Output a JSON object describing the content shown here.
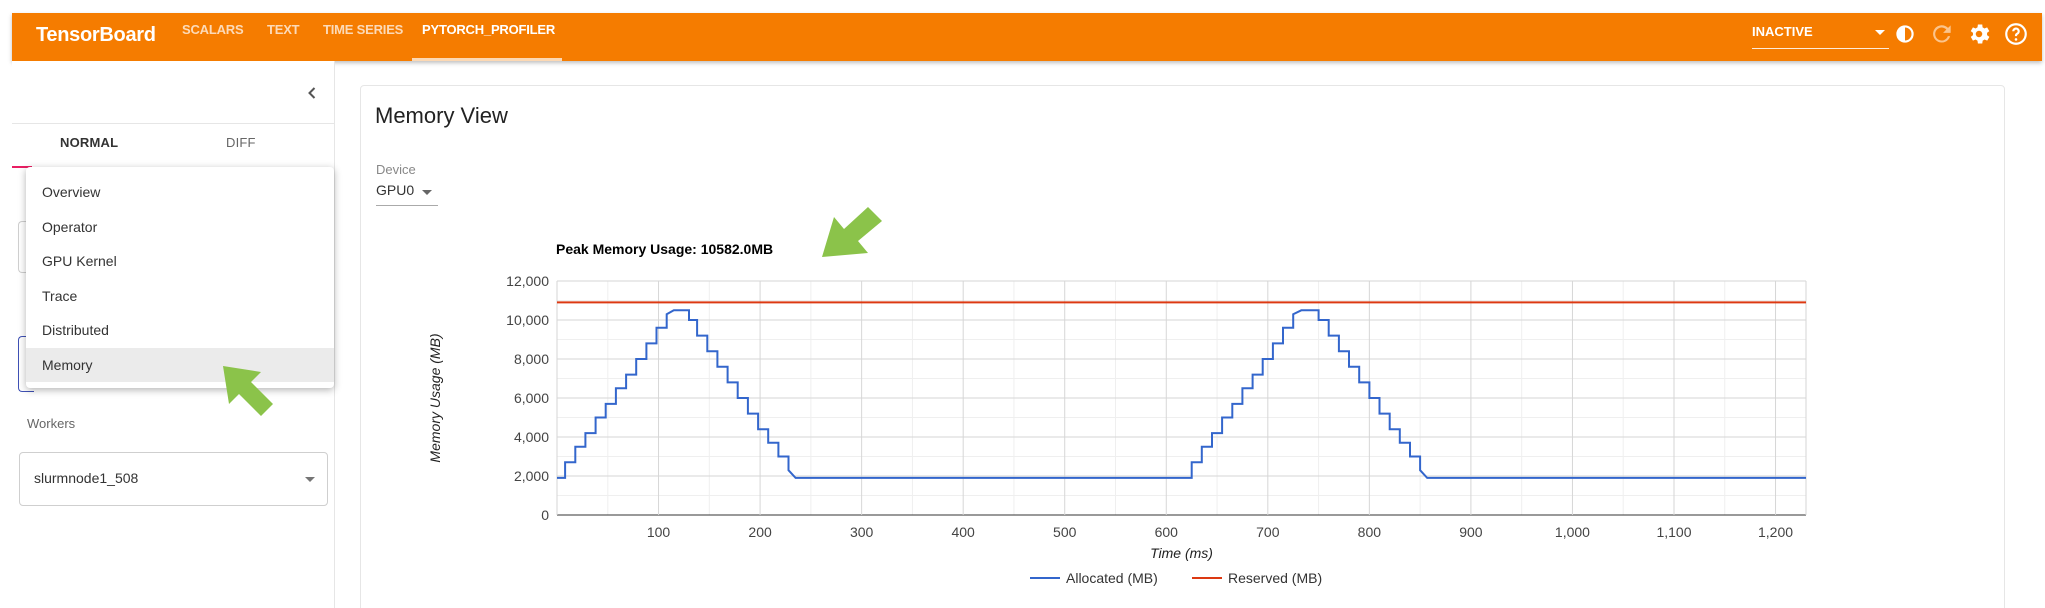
{
  "header": {
    "brand": "TensorBoard",
    "tabs": [
      {
        "label": "SCALARS"
      },
      {
        "label": "TEXT"
      },
      {
        "label": "TIME SERIES"
      },
      {
        "label": "PYTORCH_PROFILER"
      }
    ],
    "active_tab": "PYTORCH_PROFILER",
    "status": "INACTIVE",
    "icons": [
      "theme-icon",
      "refresh-icon",
      "settings-icon",
      "help-icon"
    ],
    "color": "#f57c00"
  },
  "sidebar": {
    "tabs": [
      {
        "label": "NORMAL"
      },
      {
        "label": "DIFF"
      }
    ],
    "views_menu": {
      "items": [
        {
          "label": "Overview"
        },
        {
          "label": "Operator"
        },
        {
          "label": "GPU Kernel"
        },
        {
          "label": "Trace"
        },
        {
          "label": "Distributed"
        },
        {
          "label": "Memory"
        }
      ],
      "selected": "Memory"
    },
    "workers_label": "Workers",
    "worker_value": "slurmnode1_508"
  },
  "main": {
    "title": "Memory View",
    "device_label": "Device",
    "device_value": "GPU0"
  },
  "chart_data": {
    "type": "line",
    "title": "Peak Memory Usage: 10582.0MB",
    "xlabel": "Time (ms)",
    "ylabel": "Memory Usage (MB)",
    "xlim": [
      0,
      1230
    ],
    "ylim": [
      0,
      12000
    ],
    "x_ticks": [
      100,
      200,
      300,
      400,
      500,
      600,
      700,
      800,
      900,
      1000,
      1100,
      1200
    ],
    "x_tick_labels": [
      "100",
      "200",
      "300",
      "400",
      "500",
      "600",
      "700",
      "800",
      "900",
      "1,000",
      "1,100",
      "1,200"
    ],
    "y_ticks": [
      0,
      2000,
      4000,
      6000,
      8000,
      10000,
      12000
    ],
    "y_tick_labels": [
      "0",
      "2,000",
      "4,000",
      "6,000",
      "8,000",
      "10,000",
      "12,000"
    ],
    "grid": true,
    "legend_position": "bottom",
    "series": [
      {
        "name": "Allocated (MB)",
        "color": "#3366cc",
        "x": [
          0,
          8,
          8,
          18,
          18,
          28,
          28,
          38,
          38,
          48,
          48,
          58,
          58,
          68,
          68,
          78,
          78,
          88,
          88,
          98,
          98,
          108,
          108,
          115,
          130,
          130,
          138,
          138,
          148,
          148,
          158,
          158,
          168,
          168,
          178,
          178,
          188,
          188,
          198,
          198,
          208,
          208,
          218,
          218,
          228,
          228,
          235,
          625,
          625,
          635,
          635,
          645,
          645,
          655,
          655,
          665,
          665,
          675,
          675,
          685,
          685,
          695,
          695,
          705,
          705,
          715,
          715,
          725,
          725,
          733,
          750,
          750,
          760,
          760,
          770,
          770,
          780,
          780,
          790,
          790,
          800,
          800,
          810,
          810,
          820,
          820,
          830,
          830,
          840,
          840,
          850,
          850,
          857,
          1230
        ],
        "y": [
          1900,
          1900,
          2700,
          2700,
          3500,
          3500,
          4200,
          4200,
          5000,
          5000,
          5700,
          5700,
          6500,
          6500,
          7200,
          7200,
          8000,
          8000,
          8800,
          8800,
          9600,
          9600,
          10300,
          10500,
          10500,
          10000,
          10000,
          9200,
          9200,
          8400,
          8400,
          7600,
          7600,
          6800,
          6800,
          6000,
          6000,
          5200,
          5200,
          4400,
          4400,
          3700,
          3700,
          3000,
          3000,
          2300,
          1900,
          1900,
          2700,
          2700,
          3500,
          3500,
          4200,
          4200,
          5000,
          5000,
          5700,
          5700,
          6500,
          6500,
          7200,
          7200,
          8000,
          8000,
          8800,
          8800,
          9600,
          9600,
          10300,
          10500,
          10500,
          10000,
          10000,
          9200,
          9200,
          8400,
          8400,
          7600,
          7600,
          6800,
          6800,
          6000,
          6000,
          5200,
          5200,
          4400,
          4400,
          3700,
          3700,
          3000,
          3000,
          2300,
          1900,
          1900
        ]
      },
      {
        "name": "Reserved (MB)",
        "color": "#dc3912",
        "x": [
          0,
          1230
        ],
        "y": [
          10900,
          10900
        ]
      }
    ]
  }
}
